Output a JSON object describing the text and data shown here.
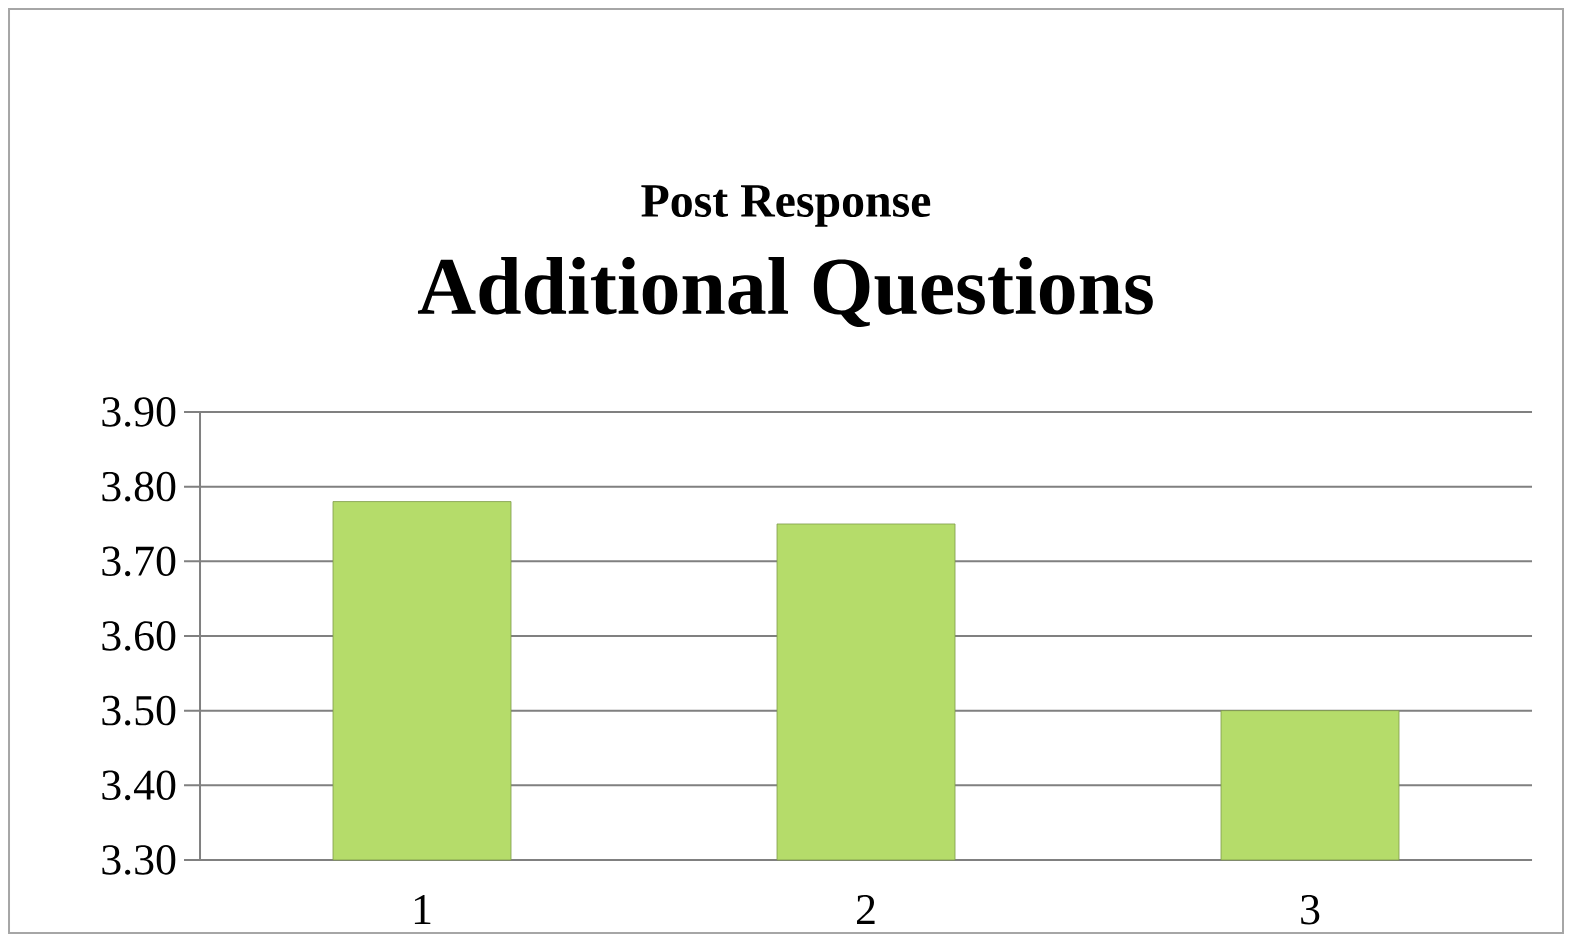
{
  "chart_data": {
    "type": "bar",
    "title": "Post Response",
    "subtitle": "Additional Questions",
    "categories": [
      "1",
      "2",
      "3"
    ],
    "values": [
      3.78,
      3.75,
      3.5
    ],
    "color": "#b5dc6a",
    "ylim": [
      3.3,
      3.9
    ],
    "yticks": [
      {
        "value": 3.3,
        "label": "3.30"
      },
      {
        "value": 3.4,
        "label": "3.40"
      },
      {
        "value": 3.5,
        "label": "3.50"
      },
      {
        "value": 3.6,
        "label": "3.60"
      },
      {
        "value": 3.7,
        "label": "3.70"
      },
      {
        "value": 3.8,
        "label": "3.80"
      },
      {
        "value": 3.9,
        "label": "3.90"
      }
    ],
    "grid": "y"
  }
}
